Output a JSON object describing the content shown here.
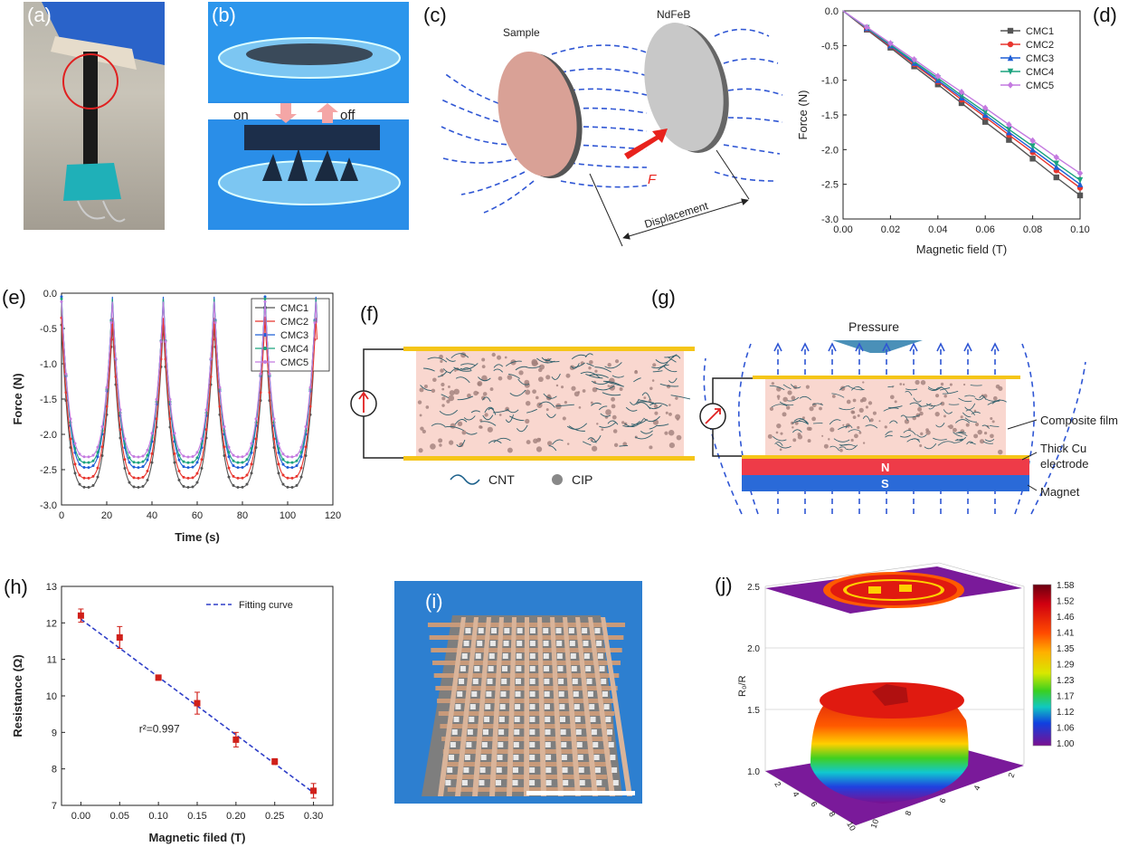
{
  "panels": {
    "a": "(a)",
    "b": "(b)",
    "c": "(c)",
    "d": "(d)",
    "e": "(e)",
    "f": "(f)",
    "g": "(g)",
    "h": "(h)",
    "i": "(i)",
    "j": "(j)"
  },
  "b": {
    "on": "on",
    "off": "off"
  },
  "c": {
    "sample": "Sample",
    "magnet": "NdFeB",
    "force": "F",
    "displacement": "Displacement"
  },
  "f": {
    "cnt": "CNT",
    "cip": "CIP"
  },
  "g": {
    "pressure": "Pressure",
    "film": "Composite film",
    "electrode1": "Thick Cu",
    "electrode2": "electrode",
    "magnet": "Magnet",
    "n": "N",
    "s": "S"
  },
  "colors": {
    "CMC1": "#555555",
    "CMC2": "#e8352e",
    "CMC3": "#1f5fd6",
    "CMC4": "#1aa37e",
    "CMC5": "#c47ae0",
    "yellow": "#f5c518",
    "pink": "#f9d7cf",
    "fieldline": "#2f56d4"
  },
  "chart_data": [
    {
      "id": "d",
      "type": "line",
      "xlabel": "Magnetic field (T)",
      "ylabel": "Force (N)",
      "xlim": [
        0,
        0.1
      ],
      "ylim": [
        -3.0,
        0.0
      ],
      "xticks": [
        "0.00",
        "0.02",
        "0.04",
        "0.06",
        "0.08",
        "0.10"
      ],
      "yticks": [
        "0.0",
        "-0.5",
        "-1.0",
        "-1.5",
        "-2.0",
        "-2.5",
        "-3.0"
      ],
      "x": [
        0,
        0.01,
        0.02,
        0.03,
        0.04,
        0.05,
        0.06,
        0.07,
        0.08,
        0.09,
        0.1
      ],
      "legend_position": "top-right",
      "series": [
        {
          "name": "CMC1",
          "values": [
            0,
            -0.27,
            -0.53,
            -0.8,
            -1.06,
            -1.33,
            -1.6,
            -1.86,
            -2.13,
            -2.4,
            -2.66
          ]
        },
        {
          "name": "CMC2",
          "values": [
            0,
            -0.26,
            -0.51,
            -0.77,
            -1.02,
            -1.28,
            -1.53,
            -1.79,
            -2.04,
            -2.3,
            -2.55
          ]
        },
        {
          "name": "CMC3",
          "values": [
            0,
            -0.25,
            -0.5,
            -0.75,
            -1.0,
            -1.25,
            -1.5,
            -1.75,
            -2.0,
            -2.25,
            -2.5
          ]
        },
        {
          "name": "CMC4",
          "values": [
            0,
            -0.244,
            -0.488,
            -0.73,
            -0.97,
            -1.22,
            -1.46,
            -1.71,
            -1.95,
            -2.2,
            -2.44
          ]
        },
        {
          "name": "CMC5",
          "values": [
            0,
            -0.234,
            -0.468,
            -0.7,
            -0.94,
            -1.17,
            -1.4,
            -1.64,
            -1.87,
            -2.11,
            -2.34
          ]
        }
      ]
    },
    {
      "id": "e",
      "type": "line",
      "xlabel": "Time (s)",
      "ylabel": "Force (N)",
      "xlim": [
        0,
        120
      ],
      "ylim": [
        -3.0,
        0.0
      ],
      "xticks": [
        "0",
        "20",
        "40",
        "60",
        "80",
        "100",
        "120"
      ],
      "yticks": [
        "0.0",
        "-0.5",
        "-1.0",
        "-1.5",
        "-2.0",
        "-2.5",
        "-3.0"
      ],
      "period": 22.5,
      "peaks": [
        0,
        22.5,
        45,
        67.5,
        90,
        112.5
      ],
      "legend_position": "top-right",
      "series": [
        {
          "name": "CMC1",
          "min": -2.75,
          "peak": -0.45
        },
        {
          "name": "CMC2",
          "min": -2.62,
          "peak": -0.35
        },
        {
          "name": "CMC3",
          "min": -2.47,
          "peak": -0.05
        },
        {
          "name": "CMC4",
          "min": -2.4,
          "peak": -0.08
        },
        {
          "name": "CMC5",
          "min": -2.32,
          "peak": -0.12
        }
      ]
    },
    {
      "id": "h",
      "type": "scatter",
      "xlabel": "Magnetic filed (T)",
      "ylabel": "Resistance (Ω)",
      "xlim": [
        -0.025,
        0.325
      ],
      "ylim": [
        7,
        13
      ],
      "xticks": [
        "0.00",
        "0.05",
        "0.10",
        "0.15",
        "0.20",
        "0.25",
        "0.30"
      ],
      "yticks": [
        "7",
        "8",
        "9",
        "10",
        "11",
        "12",
        "13"
      ],
      "legend": "Fitting curve",
      "legend_position": "top-right",
      "annotation": "r²=0.997",
      "x": [
        0,
        0.05,
        0.1,
        0.15,
        0.2,
        0.25,
        0.3
      ],
      "values": [
        12.2,
        11.6,
        10.5,
        9.8,
        8.8,
        8.2,
        7.4
      ],
      "errors": [
        0.18,
        0.3,
        0.07,
        0.3,
        0.2,
        0.08,
        0.2
      ],
      "fit": [
        [
          0,
          12.1
        ],
        [
          0.3,
          7.35
        ]
      ]
    },
    {
      "id": "j",
      "type": "heatmap",
      "zlabel": "R₀/R",
      "zticks": [
        "1.0",
        "1.5",
        "2.0",
        "2.5"
      ],
      "xticks": [
        "2",
        "4",
        "6",
        "8",
        "10"
      ],
      "yticks": [
        "10",
        "8",
        "6",
        "4",
        "2"
      ],
      "colorbar": [
        "1.58",
        "1.52",
        "1.46",
        "1.41",
        "1.35",
        "1.29",
        "1.23",
        "1.17",
        "1.12",
        "1.06",
        "1.00"
      ]
    }
  ]
}
